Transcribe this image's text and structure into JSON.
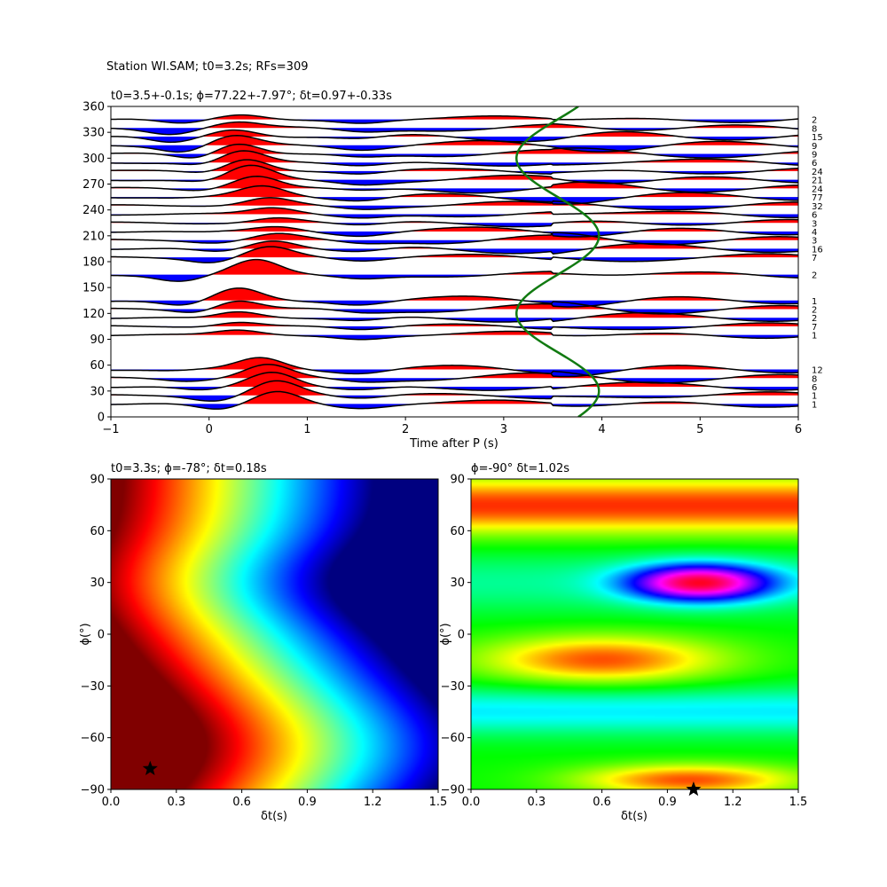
{
  "figure": {
    "suptitle": "Station WI.SAM; t0=3.2s; RFs=309"
  },
  "chart_data": [
    {
      "type": "line",
      "title": "t0=3.5+-0.1s; ϕ=77.22+-7.97°; δt=0.97+-0.33s",
      "xlabel": "Time after P (s)",
      "ylabel": "",
      "xlim": [
        -1,
        6
      ],
      "ylim": [
        0,
        360
      ],
      "xticks": [
        "−1",
        "0",
        "1",
        "2",
        "3",
        "4",
        "5",
        "6"
      ],
      "yticks": [
        "0",
        "30",
        "60",
        "90",
        "120",
        "150",
        "180",
        "210",
        "240",
        "270",
        "300",
        "330",
        "360"
      ],
      "fill_positive_color": "#ff0000",
      "fill_negative_color": "#0000ff",
      "fit_curve_color": "#117a11",
      "traces": [
        {
          "baz": 15,
          "count": "1"
        },
        {
          "baz": 25,
          "count": "1"
        },
        {
          "baz": 35,
          "count": "6"
        },
        {
          "baz": 45,
          "count": "8"
        },
        {
          "baz": 55,
          "count": "12"
        },
        {
          "baz": 95,
          "count": "1"
        },
        {
          "baz": 105,
          "count": "7"
        },
        {
          "baz": 115,
          "count": "2"
        },
        {
          "baz": 125,
          "count": "2"
        },
        {
          "baz": 135,
          "count": "1"
        },
        {
          "baz": 165,
          "count": "2"
        },
        {
          "baz": 185,
          "count": "7"
        },
        {
          "baz": 195,
          "count": "16"
        },
        {
          "baz": 205,
          "count": "3"
        },
        {
          "baz": 215,
          "count": "4"
        },
        {
          "baz": 225,
          "count": "3"
        },
        {
          "baz": 235,
          "count": "6"
        },
        {
          "baz": 245,
          "count": "32"
        },
        {
          "baz": 255,
          "count": "77"
        },
        {
          "baz": 265,
          "count": "24"
        },
        {
          "baz": 275,
          "count": "21"
        },
        {
          "baz": 285,
          "count": "24"
        },
        {
          "baz": 295,
          "count": "6"
        },
        {
          "baz": 305,
          "count": "9"
        },
        {
          "baz": 315,
          "count": "9"
        },
        {
          "baz": 325,
          "count": "15"
        },
        {
          "baz": 335,
          "count": "8"
        },
        {
          "baz": 345,
          "count": "2"
        }
      ]
    },
    {
      "type": "heatmap",
      "title": "t0=3.3s; ϕ=-78°; δt=0.18s",
      "xlabel": "δt(s)",
      "ylabel": "ϕ(°)",
      "xlim": [
        0,
        1.5
      ],
      "ylim": [
        -90,
        90
      ],
      "xticks": [
        "0.0",
        "0.3",
        "0.6",
        "0.9",
        "1.2",
        "1.5"
      ],
      "yticks": [
        "−90",
        "−60",
        "−30",
        "0",
        "30",
        "60",
        "90"
      ],
      "colormap": "jet",
      "best": {
        "dt": 0.18,
        "phi": -78
      }
    },
    {
      "type": "heatmap",
      "title": "ϕ=-90° δt=1.02s",
      "xlabel": "δt(s)",
      "ylabel": "ϕ(°)",
      "xlim": [
        0,
        1.5
      ],
      "ylim": [
        -90,
        90
      ],
      "xticks": [
        "0.0",
        "0.3",
        "0.6",
        "0.9",
        "1.2",
        "1.5"
      ],
      "yticks": [
        "−90",
        "−60",
        "−30",
        "0",
        "30",
        "60",
        "90"
      ],
      "colormap": "hsv",
      "best": {
        "dt": 1.02,
        "phi": -90
      }
    }
  ]
}
